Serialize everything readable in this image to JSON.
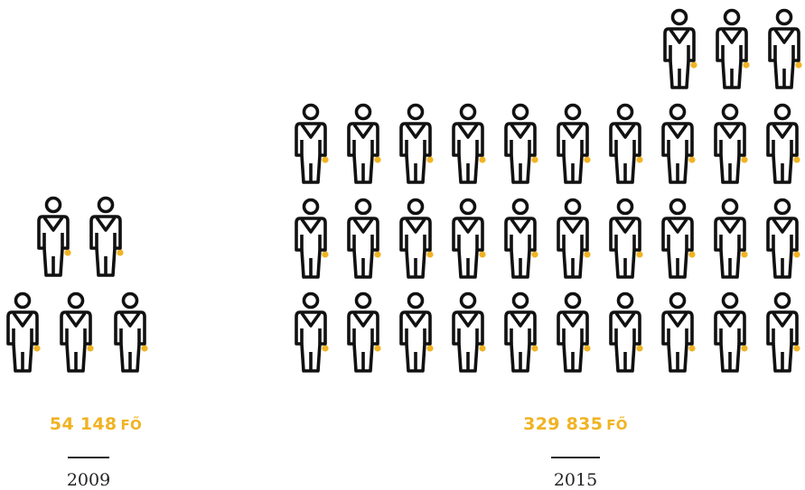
{
  "chart_data": {
    "type": "pictogram",
    "series": [
      {
        "year": "2009",
        "value": 54148,
        "value_label": "54 148",
        "unit": "FŐ",
        "icon_count": 5
      },
      {
        "year": "2015",
        "value": 329835,
        "value_label": "329 835",
        "unit": "FŐ",
        "icon_count": 33
      }
    ],
    "icon": "person-icon"
  },
  "colors": {
    "accent": "#f0b323",
    "stroke": "#111111",
    "text": "#222222"
  }
}
